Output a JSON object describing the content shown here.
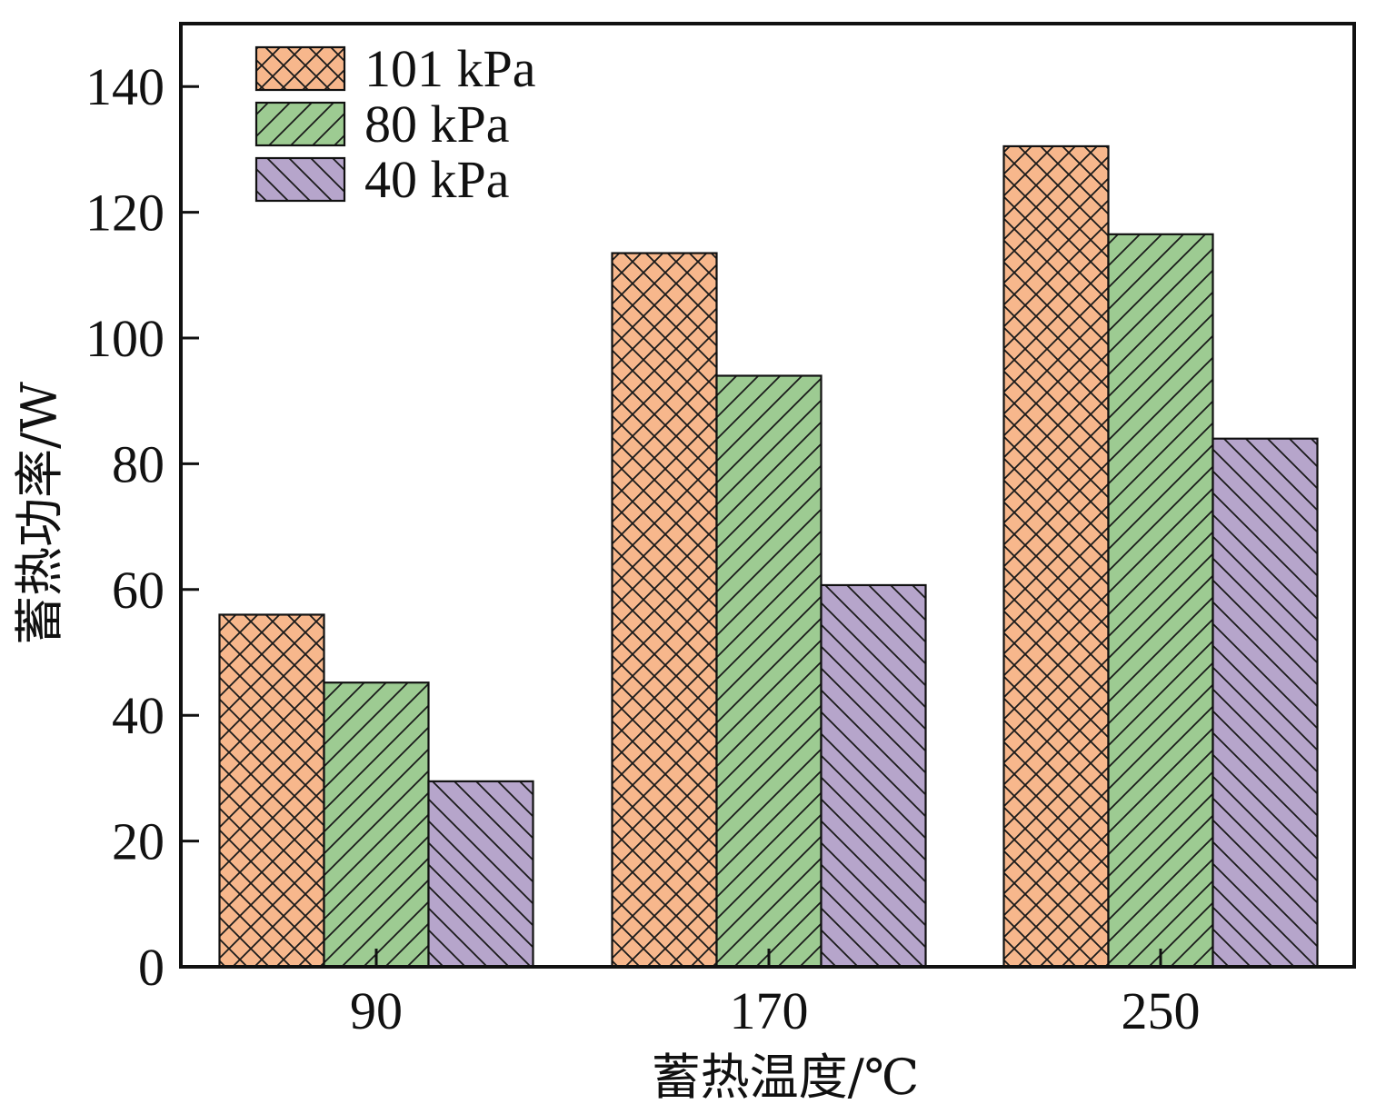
{
  "chart_data": {
    "type": "bar",
    "categories": [
      "90",
      "170",
      "250"
    ],
    "xlabel": "蓄热温度/℃",
    "ylabel": "蓄热功率/W",
    "ylim": [
      0,
      150
    ],
    "yticks": [
      0,
      20,
      40,
      60,
      80,
      100,
      120,
      140
    ],
    "grid": false,
    "legend_position": "top-left",
    "series": [
      {
        "name": "101 kPa",
        "values": [
          56,
          113.5,
          130.5
        ],
        "color": "#f7b78c",
        "pattern": "crosshatch"
      },
      {
        "name": "80 kPa",
        "values": [
          45.2,
          94,
          116.5
        ],
        "color": "#9dcb92",
        "pattern": "forward-diagonal"
      },
      {
        "name": "40 kPa",
        "values": [
          29.5,
          60.7,
          84
        ],
        "color": "#b6a5cb",
        "pattern": "back-diagonal"
      }
    ]
  }
}
